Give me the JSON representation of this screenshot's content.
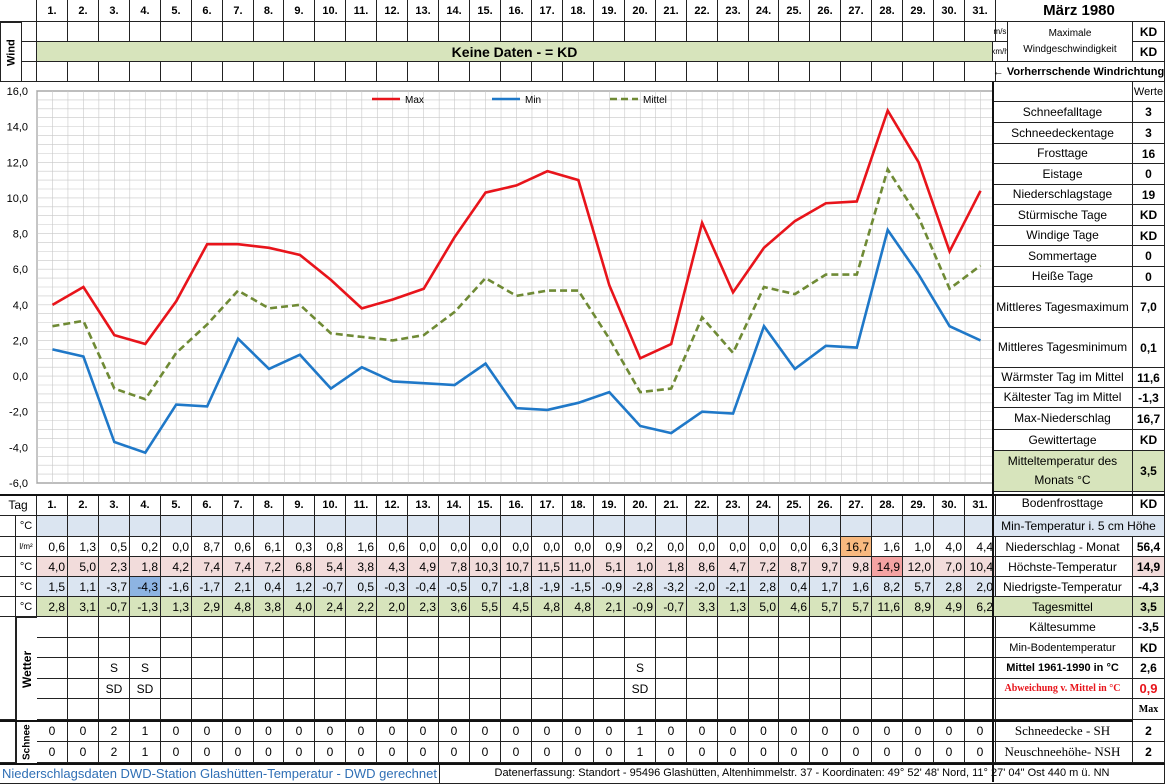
{
  "title": "März 1980",
  "days": [
    "1.",
    "2.",
    "3.",
    "4.",
    "5.",
    "6.",
    "7.",
    "8.",
    "9.",
    "10.",
    "11.",
    "12.",
    "13.",
    "14.",
    "15.",
    "16.",
    "17.",
    "18.",
    "19.",
    "20.",
    "21.",
    "22.",
    "23.",
    "24.",
    "25.",
    "26.",
    "27.",
    "28.",
    "29.",
    "30.",
    "31."
  ],
  "wind": {
    "label": "Wind",
    "unit_ms": "m/s",
    "unit_kmh": "km/h",
    "no_data": "Keine Daten -  = KD",
    "max_label": "Maximale Windgeschwindigkeit",
    "max_ms": "KD",
    "max_kmh": "KD",
    "direction": "← Vorherrschende Windrichtung"
  },
  "stats_header": "Werte",
  "stats": [
    {
      "label": "Schneefalltage",
      "value": "3"
    },
    {
      "label": "Schneedeckentage",
      "value": "3"
    },
    {
      "label": "Frosttage",
      "value": "16"
    },
    {
      "label": "Eistage",
      "value": "0"
    },
    {
      "label": "Niederschlagstage",
      "value": "19"
    },
    {
      "label": "Stürmische Tage",
      "value": "KD"
    },
    {
      "label": "Windige Tage",
      "value": "KD"
    },
    {
      "label": "Sommertage",
      "value": "0"
    },
    {
      "label": "Heiße Tage",
      "value": "0"
    },
    {
      "label": "Mittleres Tagesmaximum",
      "value": "7,0"
    },
    {
      "label": "Mittleres Tagesminimum",
      "value": "0,1"
    },
    {
      "label": "Wärmster Tag im Mittel",
      "value": "11,6"
    },
    {
      "label": "Kältester Tag im Mittel",
      "value": "-1,3"
    },
    {
      "label": "Max-Niederschlag",
      "value": "16,7"
    },
    {
      "label": "Gewittertage",
      "value": "KD"
    },
    {
      "label": "Mitteltemperatur des Monats °C",
      "value": "3,5"
    },
    {
      "label": "Bodenfrosttage",
      "value": "KD"
    }
  ],
  "colors": {
    "max": "#e8141b",
    "min": "#1f78c8",
    "mittel": "#6f8a35",
    "pink": "#f2dcdb",
    "blue": "#dbe5f1",
    "green": "#d7e4bc",
    "hot": "#f4a3a3",
    "orange": "#f8b97f",
    "coldmark": "#8db4e2"
  },
  "chart_data": {
    "type": "line",
    "x": [
      1,
      2,
      3,
      4,
      5,
      6,
      7,
      8,
      9,
      10,
      11,
      12,
      13,
      14,
      15,
      16,
      17,
      18,
      19,
      20,
      21,
      22,
      23,
      24,
      25,
      26,
      27,
      28,
      29,
      30,
      31
    ],
    "series": [
      {
        "name": "Max",
        "values": [
          4.0,
          5.0,
          2.3,
          1.8,
          4.2,
          7.4,
          7.4,
          7.2,
          6.8,
          5.4,
          3.8,
          4.3,
          4.9,
          7.8,
          10.3,
          10.7,
          11.5,
          11.0,
          5.1,
          1.0,
          1.8,
          8.6,
          4.7,
          7.2,
          8.7,
          9.7,
          9.8,
          14.9,
          12.0,
          7.0,
          10.4
        ]
      },
      {
        "name": "Min",
        "values": [
          1.5,
          1.1,
          -3.7,
          -4.3,
          -1.6,
          -1.7,
          2.1,
          0.4,
          1.2,
          -0.7,
          0.5,
          -0.3,
          -0.4,
          -0.5,
          0.7,
          -1.8,
          -1.9,
          -1.5,
          -0.9,
          -2.8,
          -3.2,
          -2.0,
          -2.1,
          2.8,
          0.4,
          1.7,
          1.6,
          8.2,
          5.7,
          2.8,
          2.0
        ]
      },
      {
        "name": "Mittel",
        "values": [
          2.8,
          3.1,
          -0.7,
          -1.3,
          1.3,
          2.9,
          4.8,
          3.8,
          4.0,
          2.4,
          2.2,
          2.0,
          2.3,
          3.6,
          5.5,
          4.5,
          4.8,
          4.8,
          2.1,
          -0.9,
          -0.7,
          3.3,
          1.3,
          5.0,
          4.6,
          5.7,
          5.7,
          11.6,
          8.9,
          4.9,
          6.2
        ]
      }
    ],
    "ylim": [
      -6,
      16
    ],
    "yticks": [
      "16,0",
      "14,0",
      "12,0",
      "10,0",
      "8,0",
      "6,0",
      "4,0",
      "2,0",
      "0,0",
      "-2,0",
      "-4,0",
      "-6,0"
    ],
    "grid": true,
    "legend": "top"
  },
  "table": {
    "tag_label": "Tag",
    "unit_c": "°C",
    "unit_lm": "l/m²",
    "min5_label": "Min-Temperatur i. 5 cm Höhe",
    "precip": [
      "0,6",
      "1,3",
      "0,5",
      "0,2",
      "0,0",
      "8,7",
      "0,6",
      "6,1",
      "0,3",
      "0,8",
      "1,6",
      "0,6",
      "0,0",
      "0,0",
      "0,0",
      "0,0",
      "0,0",
      "0,0",
      "0,9",
      "0,2",
      "0,0",
      "0,0",
      "0,0",
      "0,0",
      "0,0",
      "6,3",
      "16,7",
      "1,6",
      "1,0",
      "4,0",
      "4,4"
    ],
    "precip_label": "Niederschlag - Monat",
    "precip_value": "56,4",
    "max": [
      "4,0",
      "5,0",
      "2,3",
      "1,8",
      "4,2",
      "7,4",
      "7,4",
      "7,2",
      "6,8",
      "5,4",
      "3,8",
      "4,3",
      "4,9",
      "7,8",
      "10,3",
      "10,7",
      "11,5",
      "11,0",
      "5,1",
      "1,0",
      "1,8",
      "8,6",
      "4,7",
      "7,2",
      "8,7",
      "9,7",
      "9,8",
      "14,9",
      "12,0",
      "7,0",
      "10,4"
    ],
    "max_label": "Höchste-Temperatur",
    "max_value": "14,9",
    "min": [
      "1,5",
      "1,1",
      "-3,7",
      "-4,3",
      "-1,6",
      "-1,7",
      "2,1",
      "0,4",
      "1,2",
      "-0,7",
      "0,5",
      "-0,3",
      "-0,4",
      "-0,5",
      "0,7",
      "-1,8",
      "-1,9",
      "-1,5",
      "-0,9",
      "-2,8",
      "-3,2",
      "-2,0",
      "-2,1",
      "2,8",
      "0,4",
      "1,7",
      "1,6",
      "8,2",
      "5,7",
      "2,8",
      "2,0"
    ],
    "min_label": "Niedrigste-Temperatur",
    "min_value": "-4,3",
    "mean": [
      "2,8",
      "3,1",
      "-0,7",
      "-1,3",
      "1,3",
      "2,9",
      "4,8",
      "3,8",
      "4,0",
      "2,4",
      "2,2",
      "2,0",
      "2,3",
      "3,6",
      "5,5",
      "4,5",
      "4,8",
      "4,8",
      "2,1",
      "-0,9",
      "-0,7",
      "3,3",
      "1,3",
      "5,0",
      "4,6",
      "5,7",
      "5,7",
      "11,6",
      "8,9",
      "4,9",
      "6,2"
    ],
    "mean_label": "Tagesmittel",
    "mean_value": "3,5",
    "wetter_label": "Wetter",
    "wetter_s": {
      "3": "S",
      "4": "S",
      "20": "S"
    },
    "wetter_sd": {
      "3": "SD",
      "4": "SD",
      "20": "SD"
    },
    "kaelte_label": "Kältesumme",
    "kaelte_value": "-3,5",
    "boden_label": "Min-Bodentemperatur",
    "boden_value": "KD",
    "mittel_label": "Mittel 1961-1990 in °C",
    "mittel_value": "2,6",
    "abw_label": "Abweichung v. Mittel in °C",
    "abw_value": "0,9",
    "max_hdr": "Max",
    "schnee_label": "Schnee",
    "sh": [
      "0",
      "0",
      "2",
      "1",
      "0",
      "0",
      "0",
      "0",
      "0",
      "0",
      "0",
      "0",
      "0",
      "0",
      "0",
      "0",
      "0",
      "0",
      "0",
      "1",
      "0",
      "0",
      "0",
      "0",
      "0",
      "0",
      "0",
      "0",
      "0",
      "0",
      "0"
    ],
    "sh_label": "Schneedecke -   SH",
    "sh_value": "2",
    "nsh": [
      "0",
      "0",
      "2",
      "1",
      "0",
      "0",
      "0",
      "0",
      "0",
      "0",
      "0",
      "0",
      "0",
      "0",
      "0",
      "0",
      "0",
      "0",
      "0",
      "1",
      "0",
      "0",
      "0",
      "0",
      "0",
      "0",
      "0",
      "0",
      "0",
      "0",
      "0"
    ],
    "nsh_label": "Neuschneehöhe- NSH",
    "nsh_value": "2"
  },
  "footer": {
    "left": "Niederschlagsdaten DWD-Station Glashütten-Temperatur -  DWD gerechnet",
    "right": "Datenerfassung: Standort -  95496 Glashütten, Altenhimmelstr. 37 - Koordinaten:  49° 52' 48' Nord,   11° 27' 04\" Ost   440 m ü. NN"
  }
}
